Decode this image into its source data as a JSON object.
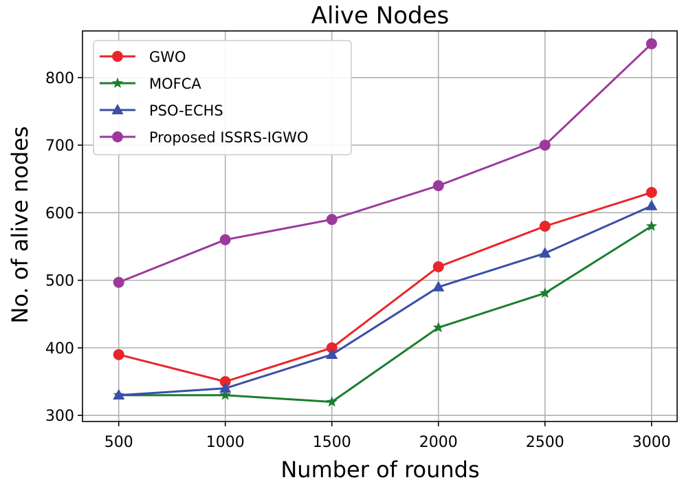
{
  "chart_data": {
    "type": "line",
    "title": "Alive Nodes",
    "xlabel": "Number of rounds",
    "ylabel": "No. of alive nodes",
    "x": [
      500,
      1000,
      1500,
      2000,
      2500,
      3000
    ],
    "x_tick_labels": [
      "500",
      "1000",
      "1500",
      "2000",
      "2500",
      "3000"
    ],
    "y_ticks": [
      300,
      400,
      500,
      600,
      700,
      800
    ],
    "y_tick_labels": [
      "300",
      "400",
      "500",
      "600",
      "700",
      "800"
    ],
    "xlim": [
      330,
      3120
    ],
    "ylim": [
      291,
      869
    ],
    "grid": true,
    "legend_position": "top-left",
    "series": [
      {
        "name": "GWO",
        "color": "#e8262a",
        "marker": "circle",
        "values": [
          390,
          350,
          400,
          520,
          580,
          630
        ]
      },
      {
        "name": "MOFCA",
        "color": "#1b7e2e",
        "marker": "star",
        "values": [
          330,
          330,
          320,
          430,
          481,
          580
        ]
      },
      {
        "name": "PSO-ECHS",
        "color": "#3a4fa6",
        "marker": "triangle",
        "values": [
          330,
          340,
          390,
          490,
          540,
          610
        ]
      },
      {
        "name": "Proposed ISSRS-IGWO",
        "color": "#9b3a9c",
        "marker": "circle",
        "values": [
          497,
          560,
          590,
          640,
          700,
          850
        ]
      }
    ]
  }
}
